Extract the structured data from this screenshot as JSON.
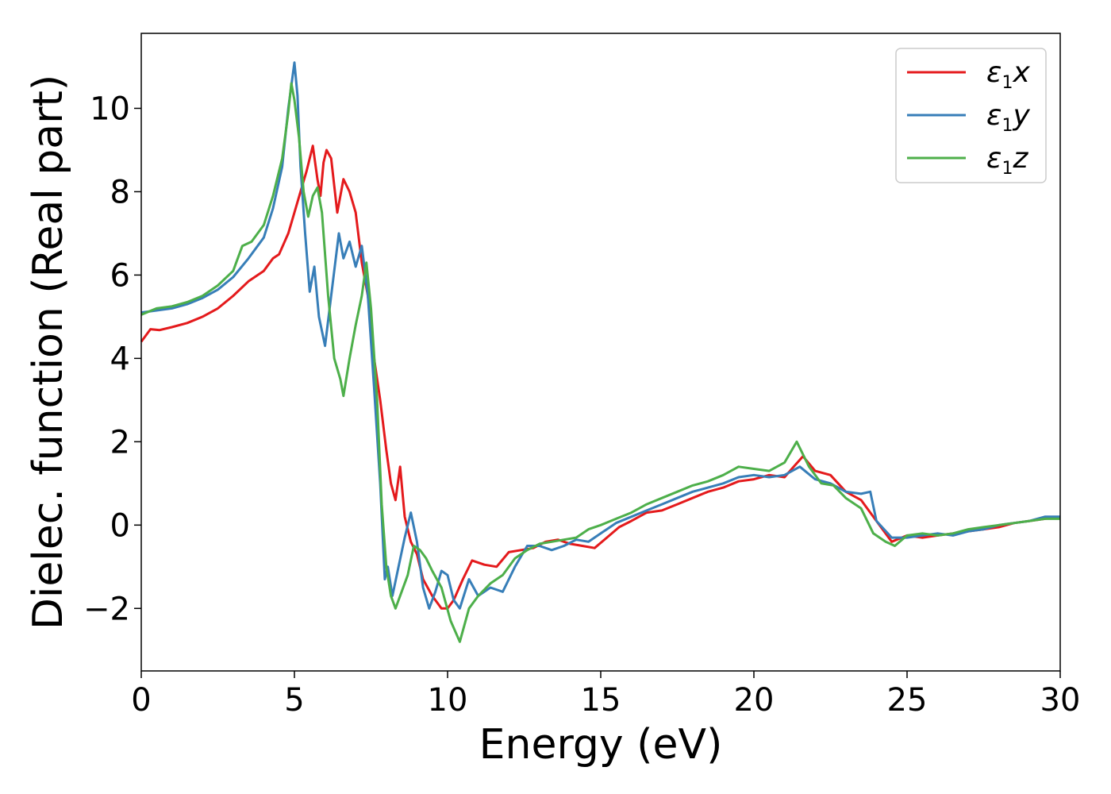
{
  "chart_data": {
    "type": "line",
    "xlabel": "Energy (eV)",
    "ylabel": "Dielec. function (Real part)",
    "xlim": [
      0,
      30
    ],
    "ylim": [
      -3.5,
      11.8
    ],
    "xticks": [
      0,
      5,
      10,
      15,
      20,
      25,
      30
    ],
    "xtick_labels": [
      "0",
      "5",
      "10",
      "15",
      "20",
      "25",
      "30"
    ],
    "yticks": [
      -2,
      0,
      2,
      4,
      6,
      8,
      10
    ],
    "ytick_labels": [
      "−2",
      "0",
      "2",
      "4",
      "6",
      "8",
      "10"
    ],
    "grid": false,
    "legend_position": "top-right",
    "series": [
      {
        "name": "ε1x",
        "legend_symbol": "ε",
        "legend_sub": "1",
        "legend_var": "x",
        "color": "#e41a1c",
        "points": [
          [
            0,
            4.4
          ],
          [
            0.3,
            4.7
          ],
          [
            0.6,
            4.68
          ],
          [
            1,
            4.75
          ],
          [
            1.5,
            4.85
          ],
          [
            2,
            5.0
          ],
          [
            2.5,
            5.2
          ],
          [
            3,
            5.5
          ],
          [
            3.5,
            5.85
          ],
          [
            4,
            6.1
          ],
          [
            4.3,
            6.4
          ],
          [
            4.5,
            6.5
          ],
          [
            4.8,
            7.0
          ],
          [
            5.0,
            7.5
          ],
          [
            5.2,
            8.0
          ],
          [
            5.4,
            8.5
          ],
          [
            5.6,
            9.1
          ],
          [
            5.75,
            8.3
          ],
          [
            5.85,
            7.9
          ],
          [
            5.95,
            8.7
          ],
          [
            6.05,
            9.0
          ],
          [
            6.2,
            8.8
          ],
          [
            6.4,
            7.5
          ],
          [
            6.6,
            8.3
          ],
          [
            6.8,
            8.0
          ],
          [
            7.0,
            7.5
          ],
          [
            7.2,
            6.3
          ],
          [
            7.4,
            5.5
          ],
          [
            7.6,
            4.0
          ],
          [
            7.8,
            3.0
          ],
          [
            8.0,
            1.8
          ],
          [
            8.15,
            1.0
          ],
          [
            8.3,
            0.6
          ],
          [
            8.45,
            1.4
          ],
          [
            8.6,
            0.2
          ],
          [
            8.8,
            -0.4
          ],
          [
            9.0,
            -0.7
          ],
          [
            9.2,
            -1.3
          ],
          [
            9.5,
            -1.7
          ],
          [
            9.8,
            -2.0
          ],
          [
            10.0,
            -2.0
          ],
          [
            10.2,
            -1.8
          ],
          [
            10.5,
            -1.3
          ],
          [
            10.8,
            -0.85
          ],
          [
            11.2,
            -0.95
          ],
          [
            11.6,
            -1.0
          ],
          [
            12.0,
            -0.65
          ],
          [
            12.4,
            -0.6
          ],
          [
            12.8,
            -0.55
          ],
          [
            13.2,
            -0.4
          ],
          [
            13.6,
            -0.35
          ],
          [
            14.0,
            -0.45
          ],
          [
            14.4,
            -0.5
          ],
          [
            14.8,
            -0.55
          ],
          [
            15.2,
            -0.3
          ],
          [
            15.6,
            -0.05
          ],
          [
            16.0,
            0.1
          ],
          [
            16.5,
            0.3
          ],
          [
            17.0,
            0.35
          ],
          [
            17.5,
            0.5
          ],
          [
            18.0,
            0.65
          ],
          [
            18.5,
            0.8
          ],
          [
            19.0,
            0.9
          ],
          [
            19.5,
            1.05
          ],
          [
            20.0,
            1.1
          ],
          [
            20.5,
            1.2
          ],
          [
            21.0,
            1.15
          ],
          [
            21.3,
            1.4
          ],
          [
            21.6,
            1.65
          ],
          [
            22.0,
            1.3
          ],
          [
            22.5,
            1.2
          ],
          [
            23.0,
            0.8
          ],
          [
            23.5,
            0.6
          ],
          [
            24.0,
            0.1
          ],
          [
            24.5,
            -0.4
          ],
          [
            25.0,
            -0.25
          ],
          [
            25.5,
            -0.3
          ],
          [
            26.0,
            -0.25
          ],
          [
            26.5,
            -0.2
          ],
          [
            27.0,
            -0.15
          ],
          [
            27.5,
            -0.1
          ],
          [
            28.0,
            -0.05
          ],
          [
            28.5,
            0.05
          ],
          [
            29.0,
            0.1
          ],
          [
            29.5,
            0.15
          ],
          [
            30.0,
            0.2
          ]
        ]
      },
      {
        "name": "ε1y",
        "legend_symbol": "ε",
        "legend_sub": "1",
        "legend_var": "y",
        "color": "#377eb8",
        "points": [
          [
            0,
            5.1
          ],
          [
            0.5,
            5.15
          ],
          [
            1,
            5.2
          ],
          [
            1.5,
            5.3
          ],
          [
            2,
            5.45
          ],
          [
            2.5,
            5.65
          ],
          [
            3,
            5.95
          ],
          [
            3.5,
            6.4
          ],
          [
            4,
            6.9
          ],
          [
            4.3,
            7.6
          ],
          [
            4.6,
            8.6
          ],
          [
            4.8,
            10.0
          ],
          [
            5.0,
            11.1
          ],
          [
            5.1,
            10.3
          ],
          [
            5.2,
            8.6
          ],
          [
            5.35,
            7.0
          ],
          [
            5.5,
            5.6
          ],
          [
            5.65,
            6.2
          ],
          [
            5.8,
            5.0
          ],
          [
            6.0,
            4.3
          ],
          [
            6.2,
            5.5
          ],
          [
            6.45,
            7.0
          ],
          [
            6.6,
            6.4
          ],
          [
            6.8,
            6.8
          ],
          [
            7.0,
            6.2
          ],
          [
            7.2,
            6.7
          ],
          [
            7.4,
            5.5
          ],
          [
            7.6,
            3.3
          ],
          [
            7.8,
            1.0
          ],
          [
            7.95,
            -1.3
          ],
          [
            8.05,
            -1.0
          ],
          [
            8.2,
            -1.7
          ],
          [
            8.4,
            -1.0
          ],
          [
            8.6,
            -0.3
          ],
          [
            8.8,
            0.3
          ],
          [
            9.0,
            -0.4
          ],
          [
            9.2,
            -1.5
          ],
          [
            9.4,
            -2.0
          ],
          [
            9.6,
            -1.6
          ],
          [
            9.8,
            -1.1
          ],
          [
            10.0,
            -1.2
          ],
          [
            10.2,
            -1.8
          ],
          [
            10.4,
            -2.0
          ],
          [
            10.7,
            -1.3
          ],
          [
            11.0,
            -1.7
          ],
          [
            11.4,
            -1.5
          ],
          [
            11.8,
            -1.6
          ],
          [
            12.2,
            -1.0
          ],
          [
            12.6,
            -0.5
          ],
          [
            13.0,
            -0.5
          ],
          [
            13.4,
            -0.6
          ],
          [
            13.8,
            -0.5
          ],
          [
            14.2,
            -0.35
          ],
          [
            14.6,
            -0.4
          ],
          [
            15.0,
            -0.2
          ],
          [
            15.5,
            0.05
          ],
          [
            16.0,
            0.2
          ],
          [
            16.5,
            0.35
          ],
          [
            17.0,
            0.5
          ],
          [
            17.5,
            0.65
          ],
          [
            18.0,
            0.8
          ],
          [
            18.5,
            0.9
          ],
          [
            19.0,
            1.0
          ],
          [
            19.5,
            1.15
          ],
          [
            20.0,
            1.2
          ],
          [
            20.5,
            1.15
          ],
          [
            21.0,
            1.2
          ],
          [
            21.5,
            1.4
          ],
          [
            22.0,
            1.1
          ],
          [
            22.5,
            1.0
          ],
          [
            23.0,
            0.8
          ],
          [
            23.5,
            0.75
          ],
          [
            23.8,
            0.8
          ],
          [
            24.0,
            0.1
          ],
          [
            24.5,
            -0.3
          ],
          [
            25.0,
            -0.3
          ],
          [
            25.5,
            -0.25
          ],
          [
            26.0,
            -0.2
          ],
          [
            26.5,
            -0.25
          ],
          [
            27.0,
            -0.15
          ],
          [
            27.5,
            -0.1
          ],
          [
            28.0,
            0.0
          ],
          [
            28.5,
            0.05
          ],
          [
            29.0,
            0.1
          ],
          [
            29.5,
            0.2
          ],
          [
            30.0,
            0.2
          ]
        ]
      },
      {
        "name": "ε1z",
        "legend_symbol": "ε",
        "legend_sub": "1",
        "legend_var": "z",
        "color": "#4daf4a",
        "points": [
          [
            0,
            5.05
          ],
          [
            0.5,
            5.2
          ],
          [
            1,
            5.25
          ],
          [
            1.5,
            5.35
          ],
          [
            2,
            5.5
          ],
          [
            2.5,
            5.75
          ],
          [
            3,
            6.1
          ],
          [
            3.3,
            6.7
          ],
          [
            3.6,
            6.8
          ],
          [
            4,
            7.2
          ],
          [
            4.3,
            7.9
          ],
          [
            4.6,
            8.8
          ],
          [
            4.8,
            9.9
          ],
          [
            4.9,
            10.6
          ],
          [
            5.0,
            10.2
          ],
          [
            5.15,
            9.3
          ],
          [
            5.3,
            8.0
          ],
          [
            5.45,
            7.4
          ],
          [
            5.6,
            7.9
          ],
          [
            5.75,
            8.1
          ],
          [
            5.9,
            7.5
          ],
          [
            6.1,
            5.5
          ],
          [
            6.3,
            4.0
          ],
          [
            6.5,
            3.5
          ],
          [
            6.6,
            3.1
          ],
          [
            6.8,
            4.0
          ],
          [
            7.0,
            4.8
          ],
          [
            7.2,
            5.5
          ],
          [
            7.35,
            6.3
          ],
          [
            7.5,
            5.2
          ],
          [
            7.7,
            3.0
          ],
          [
            7.85,
            0.5
          ],
          [
            8.0,
            -1.0
          ],
          [
            8.15,
            -1.7
          ],
          [
            8.3,
            -2.0
          ],
          [
            8.5,
            -1.6
          ],
          [
            8.7,
            -1.2
          ],
          [
            8.9,
            -0.5
          ],
          [
            9.1,
            -0.6
          ],
          [
            9.3,
            -0.8
          ],
          [
            9.5,
            -1.1
          ],
          [
            9.8,
            -1.5
          ],
          [
            10.1,
            -2.3
          ],
          [
            10.4,
            -2.8
          ],
          [
            10.7,
            -2.0
          ],
          [
            11.0,
            -1.7
          ],
          [
            11.4,
            -1.4
          ],
          [
            11.8,
            -1.2
          ],
          [
            12.2,
            -0.8
          ],
          [
            12.6,
            -0.6
          ],
          [
            13.0,
            -0.45
          ],
          [
            13.4,
            -0.4
          ],
          [
            13.8,
            -0.35
          ],
          [
            14.2,
            -0.3
          ],
          [
            14.6,
            -0.1
          ],
          [
            15.0,
            0.0
          ],
          [
            15.5,
            0.15
          ],
          [
            16.0,
            0.3
          ],
          [
            16.5,
            0.5
          ],
          [
            17.0,
            0.65
          ],
          [
            17.5,
            0.8
          ],
          [
            18.0,
            0.95
          ],
          [
            18.5,
            1.05
          ],
          [
            19.0,
            1.2
          ],
          [
            19.5,
            1.4
          ],
          [
            20.0,
            1.35
          ],
          [
            20.5,
            1.3
          ],
          [
            21.0,
            1.5
          ],
          [
            21.4,
            2.0
          ],
          [
            21.8,
            1.4
          ],
          [
            22.2,
            1.0
          ],
          [
            22.6,
            0.95
          ],
          [
            23.0,
            0.65
          ],
          [
            23.5,
            0.4
          ],
          [
            23.9,
            -0.2
          ],
          [
            24.3,
            -0.4
          ],
          [
            24.6,
            -0.5
          ],
          [
            25.0,
            -0.25
          ],
          [
            25.5,
            -0.2
          ],
          [
            26.0,
            -0.25
          ],
          [
            26.5,
            -0.2
          ],
          [
            27.0,
            -0.1
          ],
          [
            27.5,
            -0.05
          ],
          [
            28.0,
            0.0
          ],
          [
            28.5,
            0.05
          ],
          [
            29.0,
            0.1
          ],
          [
            29.5,
            0.15
          ],
          [
            30.0,
            0.15
          ]
        ]
      }
    ]
  }
}
